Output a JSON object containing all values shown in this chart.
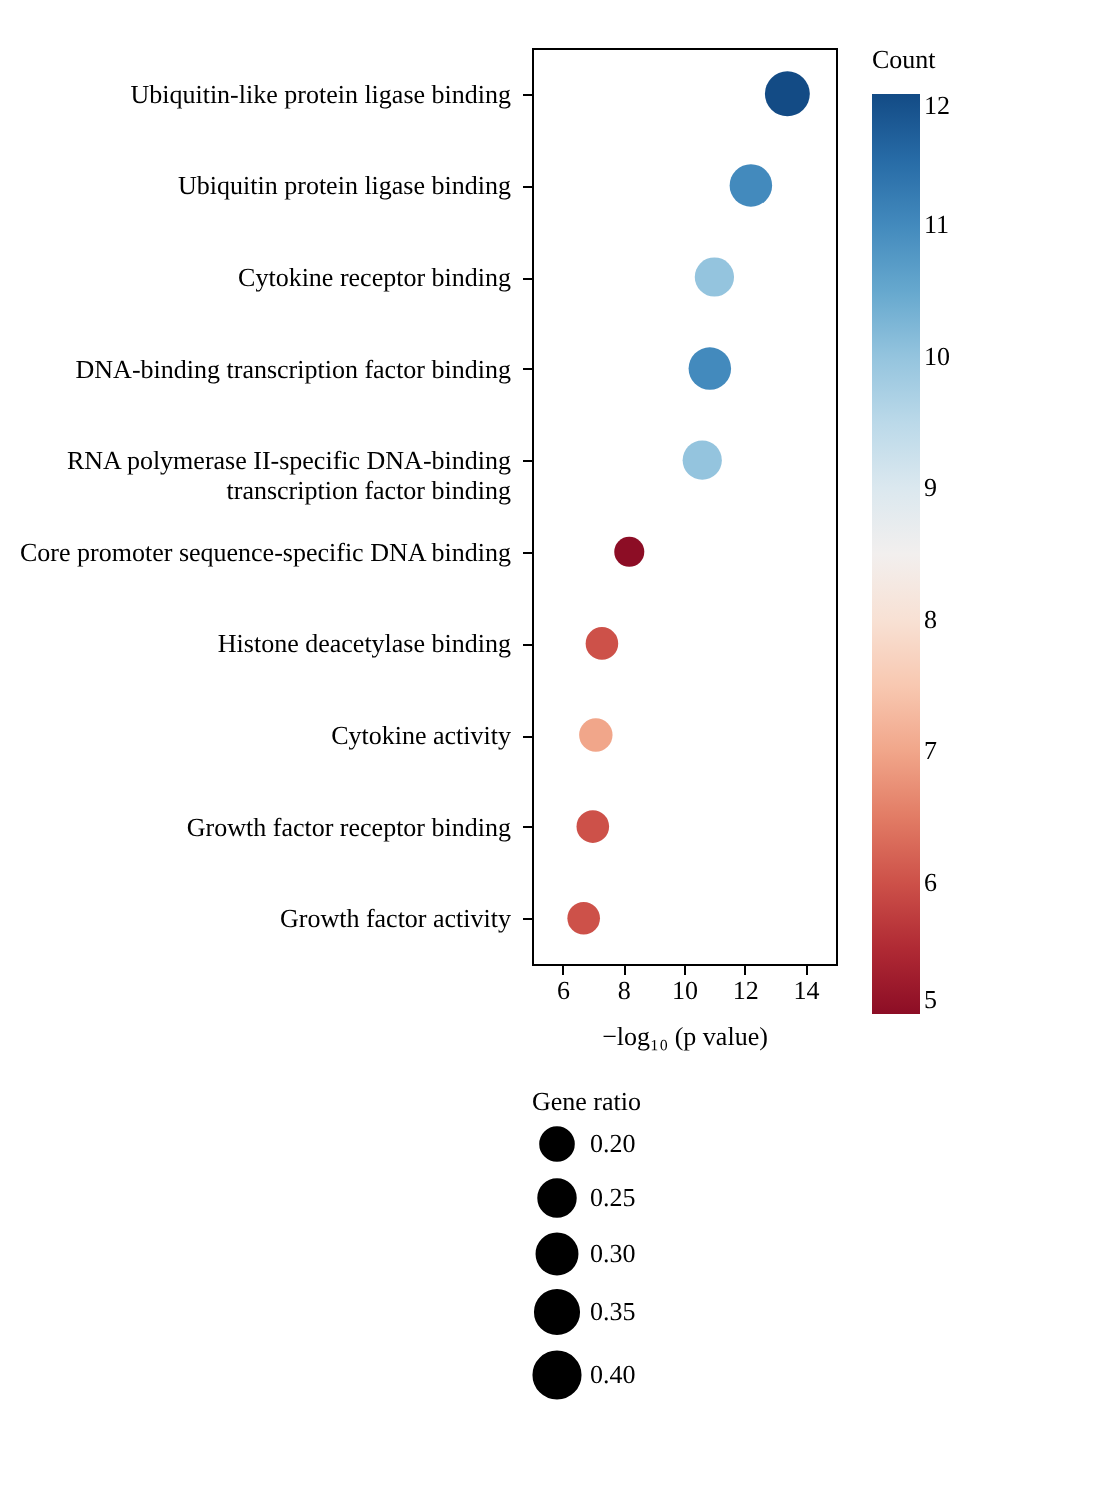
{
  "chart_data": {
    "type": "bubble",
    "xlabel": "−log₁₀ (p value)",
    "clabel": "Count",
    "legend_title": "Gene ratio",
    "categories": [
      "Ubiquitin-like protein ligase binding",
      "Ubiquitin protein ligase binding",
      "Cytokine receptor binding",
      "DNA-binding transcription factor binding",
      "RNA polymerase II-specific DNA-binding transcription factor binding",
      "Core promoter sequence-specific DNA binding",
      "Histone deacetylase binding",
      "Cytokine activity",
      "Growth factor receptor binding",
      "Growth factor activity"
    ],
    "values": [
      13.4,
      12.2,
      11.0,
      10.85,
      10.6,
      8.2,
      7.3,
      7.1,
      7.0,
      6.7
    ],
    "cvalues": [
      12,
      11,
      10,
      11,
      10,
      5,
      6,
      7,
      6,
      6
    ],
    "sizes": [
      0.38,
      0.34,
      0.29,
      0.34,
      0.29,
      0.17,
      0.2,
      0.21,
      0.2,
      0.2
    ],
    "size_legend": [
      {
        "value": 0.2,
        "label": "0.20"
      },
      0.25,
      {
        "value": 0.3,
        "label": "0.30"
      },
      0.35,
      {
        "value": 0.4,
        "label": "0.40"
      }
    ],
    "xlim": [
      5,
      15
    ],
    "xticks": [
      6,
      8,
      10,
      12,
      14
    ],
    "clim": [
      5,
      12
    ],
    "cticks": [
      5,
      6,
      7,
      8,
      9,
      10,
      11,
      12
    ],
    "orientation": "horizontal",
    "grid": false
  }
}
